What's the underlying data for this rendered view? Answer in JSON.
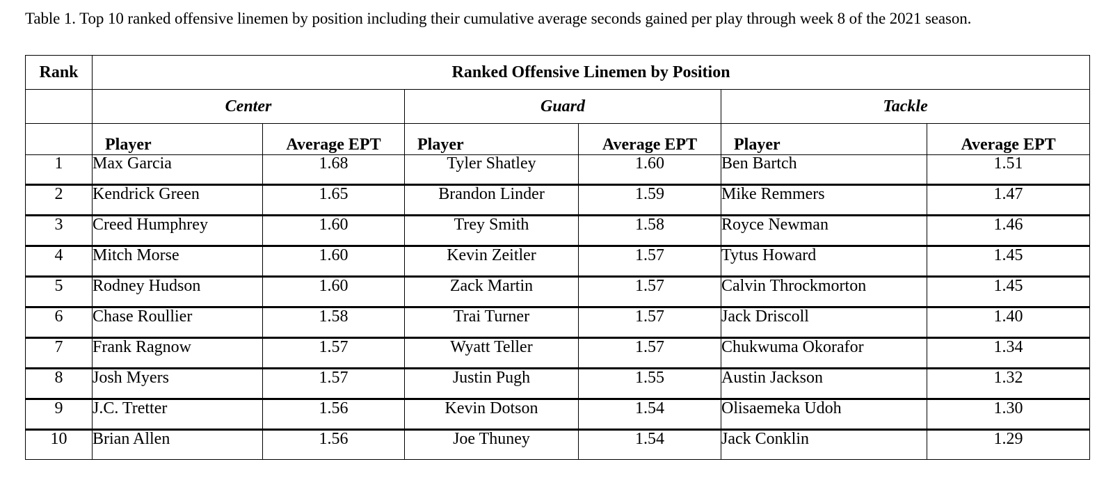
{
  "caption": "Table 1. Top 10 ranked offensive linemen by position including their cumulative average seconds gained per play through week 8 of the 2021 season.",
  "table": {
    "rank_header": "Rank",
    "group_header": "Ranked Offensive Linemen by Position",
    "positions": [
      "Center",
      "Guard",
      "Tackle"
    ],
    "player_header": "Player",
    "ept_header": "Average EPT",
    "rows": [
      {
        "rank": "1",
        "center_player": "Max Garcia",
        "center_ept": "1.68",
        "guard_player": "Tyler Shatley",
        "guard_ept": "1.60",
        "tackle_player": "Ben Bartch",
        "tackle_ept": "1.51"
      },
      {
        "rank": "2",
        "center_player": "Kendrick Green",
        "center_ept": "1.65",
        "guard_player": "Brandon Linder",
        "guard_ept": "1.59",
        "tackle_player": "Mike Remmers",
        "tackle_ept": "1.47"
      },
      {
        "rank": "3",
        "center_player": "Creed Humphrey",
        "center_ept": "1.60",
        "guard_player": "Trey Smith",
        "guard_ept": "1.58",
        "tackle_player": "Royce Newman",
        "tackle_ept": "1.46"
      },
      {
        "rank": "4",
        "center_player": "Mitch Morse",
        "center_ept": "1.60",
        "guard_player": "Kevin Zeitler",
        "guard_ept": "1.57",
        "tackle_player": "Tytus Howard",
        "tackle_ept": "1.45"
      },
      {
        "rank": "5",
        "center_player": "Rodney Hudson",
        "center_ept": "1.60",
        "guard_player": "Zack Martin",
        "guard_ept": "1.57",
        "tackle_player": "Calvin Throckmorton",
        "tackle_ept": "1.45"
      },
      {
        "rank": "6",
        "center_player": "Chase Roullier",
        "center_ept": "1.58",
        "guard_player": "Trai Turner",
        "guard_ept": "1.57",
        "tackle_player": "Jack Driscoll",
        "tackle_ept": "1.40"
      },
      {
        "rank": "7",
        "center_player": "Frank Ragnow",
        "center_ept": "1.57",
        "guard_player": "Wyatt Teller",
        "guard_ept": "1.57",
        "tackle_player": "Chukwuma Okorafor",
        "tackle_ept": "1.34"
      },
      {
        "rank": "8",
        "center_player": "Josh Myers",
        "center_ept": "1.57",
        "guard_player": "Justin Pugh",
        "guard_ept": "1.55",
        "tackle_player": "Austin Jackson",
        "tackle_ept": "1.32"
      },
      {
        "rank": "9",
        "center_player": "J.C. Tretter",
        "center_ept": "1.56",
        "guard_player": "Kevin Dotson",
        "guard_ept": "1.54",
        "tackle_player": "Olisaemeka Udoh",
        "tackle_ept": "1.30"
      },
      {
        "rank": "10",
        "center_player": "Brian Allen",
        "center_ept": "1.56",
        "guard_player": "Joe Thuney",
        "guard_ept": "1.54",
        "tackle_player": "Jack Conklin",
        "tackle_ept": "1.29"
      }
    ]
  }
}
